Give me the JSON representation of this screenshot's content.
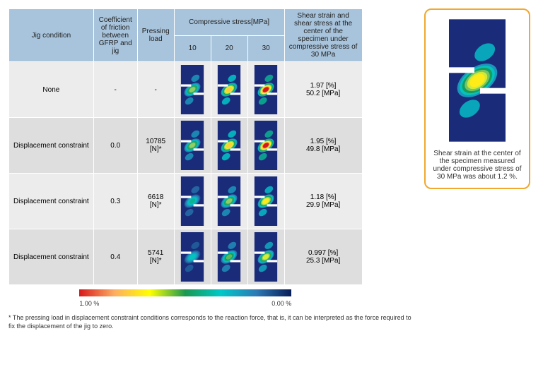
{
  "table": {
    "headers": {
      "jig": "Jig condition",
      "cof": "Coefficient of friction between GFRP and jig",
      "load": "Pressing load",
      "stress_group": "Compressive stress[MPa]",
      "stress_levels": [
        "10",
        "20",
        "30"
      ],
      "result": "Shear strain and shear stress at the center of the specimen under compressive stress of 30 MPa"
    },
    "rows": [
      {
        "jig": "None",
        "cof": "-",
        "load": "-",
        "shear_pct": "1.97 [%]",
        "shear_mpa": "50.2 [MPa]",
        "intensity": [
          0.55,
          0.8,
          1.0
        ],
        "shade": "a"
      },
      {
        "jig": "Displacement constraint",
        "cof": "0.0",
        "load": "10785 [N]*",
        "shear_pct": "1.95 [%]",
        "shear_mpa": "49.8 [MPa]",
        "intensity": [
          0.55,
          0.8,
          1.0
        ],
        "shade": "b"
      },
      {
        "jig": "Displacement constraint",
        "cof": "0.3",
        "load": "6618 [N]*",
        "shear_pct": "1.18 [%]",
        "shear_mpa": "29.9 [MPa]",
        "intensity": [
          0.35,
          0.55,
          0.75
        ],
        "shade": "a"
      },
      {
        "jig": "Displacement constraint",
        "cof": "0.4",
        "load": "5741 [N]*",
        "shear_pct": "0.997 [%]",
        "shear_mpa": "25.3 [MPa]",
        "intensity": [
          0.3,
          0.5,
          0.65
        ],
        "shade": "b"
      }
    ]
  },
  "legend": {
    "max_label": "1.00 %",
    "min_label": "0.00 %",
    "gradient": [
      "#d7191c",
      "#fdae61",
      "#ffff00",
      "#1a9850",
      "#00c8c8",
      "#2c7bb6",
      "#081d58"
    ]
  },
  "side": {
    "caption": "Shear strain at the center of the specimen measured under compressive stress of 30 MPa was about 1.2 %.",
    "intensity": 0.75
  },
  "footnote": "* The pressing load in displacement constraint conditions corresponds to the reaction force, that is, it can be interpreted as the force required to fix the displacement of the jig to zero.",
  "sim_style": {
    "bg": "#1a2b7a",
    "notch": "#ffffff",
    "colormap": [
      "#081d58",
      "#2c7bb6",
      "#00c8c8",
      "#1a9850",
      "#a6d96a",
      "#ffff00",
      "#fdae61",
      "#d7191c"
    ]
  }
}
